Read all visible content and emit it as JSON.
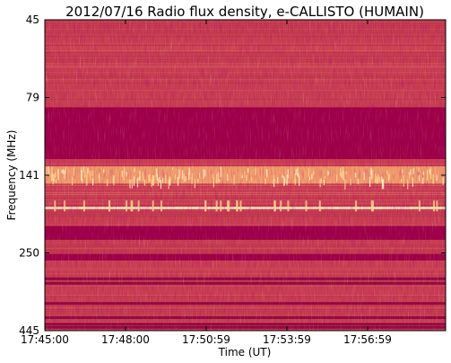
{
  "chart_data": {
    "type": "heatmap",
    "title": "2012/07/16  Radio flux density, e-CALLISTO (HUMAIN)",
    "xlabel": "Time (UT)",
    "ylabel": "Frequency (MHz)",
    "x_ticks": [
      "17:45:00",
      "17:48:00",
      "17:50:59",
      "17:53:59",
      "17:56:59"
    ],
    "y_ticks": [
      "45",
      "79",
      "141",
      "250",
      "445"
    ],
    "y_axis_range": [
      45,
      445
    ],
    "bands": [
      {
        "from_mhz": 85,
        "to_mhz": 125,
        "kind": "saturated"
      },
      {
        "from_mhz": 132,
        "to_mhz": 150,
        "kind": "bright emission"
      },
      {
        "from_mhz": 178,
        "to_mhz": 181,
        "kind": "bright line"
      },
      {
        "from_mhz": 205,
        "to_mhz": 227,
        "kind": "saturated"
      },
      {
        "from_mhz": 252,
        "to_mhz": 265,
        "kind": "saturated"
      }
    ],
    "colors": {
      "background": "#c8404f",
      "saturated": "#9c0045",
      "dark_stripe": "#8e0a3e",
      "bright": "#ffd58f",
      "hot": "#fff1c2"
    }
  }
}
